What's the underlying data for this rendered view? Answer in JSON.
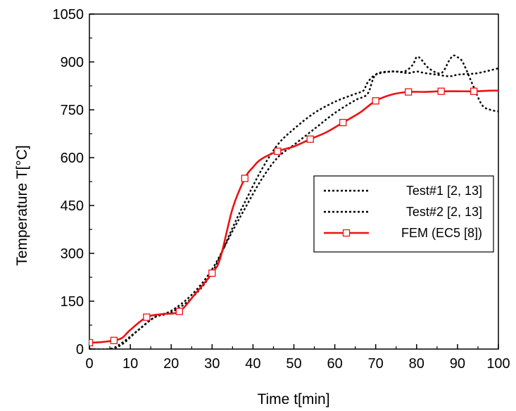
{
  "chart_data": {
    "type": "line",
    "title": "",
    "xlabel": "Time t[min]",
    "ylabel": "Temperature T[°C]",
    "xlim": [
      0,
      100
    ],
    "ylim": [
      0,
      1050
    ],
    "xticks": [
      "0",
      "10",
      "20",
      "30",
      "40",
      "50",
      "60",
      "70",
      "80",
      "90",
      "100"
    ],
    "yticks": [
      "0",
      "150",
      "300",
      "450",
      "600",
      "750",
      "900",
      "1050"
    ],
    "grid": false,
    "legend_position": "center-right",
    "series": [
      {
        "name": "Test#1 [2, 13]",
        "color": "#000000",
        "style": "dotted",
        "marker": "none",
        "x": [
          0,
          5,
          8,
          12,
          16,
          20,
          25,
          30,
          35,
          38,
          42,
          46,
          50,
          55,
          60,
          65,
          67,
          68,
          70,
          74,
          78,
          80,
          82,
          85,
          88,
          90,
          92,
          95,
          100
        ],
        "y": [
          0,
          0,
          15,
          60,
          100,
          115,
          160,
          240,
          380,
          460,
          560,
          640,
          690,
          740,
          775,
          800,
          810,
          835,
          860,
          870,
          865,
          870,
          865,
          860,
          855,
          860,
          862,
          865,
          880
        ]
      },
      {
        "name": "Test#2 [2, 13]",
        "color": "#000000",
        "style": "dotted",
        "marker": "none",
        "x": [
          0,
          5,
          8,
          12,
          16,
          20,
          25,
          30,
          35,
          38,
          42,
          46,
          50,
          55,
          60,
          65,
          68,
          70,
          74,
          77,
          79,
          80,
          81,
          83,
          86,
          88,
          89,
          90,
          91,
          92,
          94,
          96,
          98,
          100
        ],
        "y": [
          0,
          0,
          20,
          60,
          100,
          120,
          170,
          250,
          370,
          440,
          530,
          600,
          640,
          690,
          740,
          780,
          800,
          860,
          870,
          870,
          890,
          915,
          910,
          880,
          865,
          905,
          920,
          915,
          905,
          880,
          820,
          765,
          750,
          745
        ]
      },
      {
        "name": "FEM (EC5 [8])",
        "color": "#ee1111",
        "style": "solid",
        "marker": "open-square",
        "x": [
          0,
          3,
          6,
          8,
          10,
          14,
          18,
          22,
          26,
          30,
          32,
          35,
          38,
          40,
          42,
          46,
          50,
          54,
          58,
          62,
          66,
          70,
          74,
          78,
          82,
          86,
          90,
          94,
          98,
          100
        ],
        "y": [
          20,
          22,
          27,
          35,
          60,
          100,
          110,
          118,
          175,
          238,
          285,
          440,
          535,
          570,
          595,
          620,
          635,
          658,
          680,
          710,
          740,
          778,
          798,
          806,
          806,
          808,
          808,
          808,
          810,
          810
        ],
        "marker_x": [
          0,
          6,
          14,
          22,
          30,
          38,
          46,
          54,
          62,
          70,
          78,
          86,
          94
        ],
        "marker_y": [
          20,
          27,
          100,
          118,
          238,
          535,
          620,
          658,
          710,
          778,
          806,
          808,
          808
        ]
      }
    ]
  }
}
